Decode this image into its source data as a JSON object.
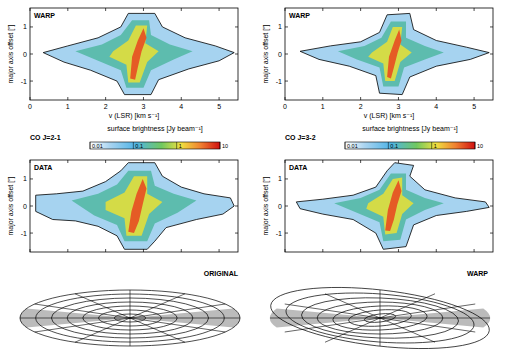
{
  "chart_data": [
    {
      "type": "contour",
      "label": "WARP",
      "xlabel": "v (LSR) [km s⁻¹]",
      "ylabel": "major axis offset [″]",
      "xlim": [
        0,
        5.5
      ],
      "ylim": [
        -1.7,
        1.7
      ],
      "xticks": [
        0,
        1,
        2,
        3,
        4,
        5
      ],
      "yticks": [
        -1,
        0,
        1
      ],
      "contours": [
        {
          "level": 0.03,
          "points": [
            [
              0.35,
              0.05
            ],
            [
              1.0,
              0.3
            ],
            [
              1.8,
              0.6
            ],
            [
              2.4,
              1.0
            ],
            [
              2.6,
              1.5
            ],
            [
              3.3,
              1.5
            ],
            [
              3.5,
              1.0
            ],
            [
              4.1,
              0.6
            ],
            [
              4.9,
              0.3
            ],
            [
              5.4,
              0.05
            ],
            [
              5.0,
              -0.25
            ],
            [
              4.2,
              -0.55
            ],
            [
              3.4,
              -0.95
            ],
            [
              3.2,
              -1.5
            ],
            [
              2.5,
              -1.5
            ],
            [
              2.3,
              -1.0
            ],
            [
              1.6,
              -0.6
            ],
            [
              0.9,
              -0.3
            ]
          ]
        },
        {
          "level": 0.2,
          "points": [
            [
              1.2,
              0.1
            ],
            [
              1.9,
              0.35
            ],
            [
              2.4,
              0.7
            ],
            [
              2.7,
              1.25
            ],
            [
              3.15,
              1.25
            ],
            [
              3.2,
              0.7
            ],
            [
              3.7,
              0.35
            ],
            [
              4.3,
              0.1
            ],
            [
              3.8,
              -0.2
            ],
            [
              3.2,
              -0.6
            ],
            [
              3.0,
              -1.25
            ],
            [
              2.55,
              -1.25
            ],
            [
              2.4,
              -0.6
            ],
            [
              1.8,
              -0.25
            ]
          ]
        },
        {
          "level": 1,
          "points": [
            [
              2.2,
              0.1
            ],
            [
              2.6,
              0.5
            ],
            [
              2.8,
              1.05
            ],
            [
              3.1,
              1.05
            ],
            [
              3.05,
              0.4
            ],
            [
              3.4,
              0.1
            ],
            [
              3.1,
              -0.3
            ],
            [
              2.9,
              -1.05
            ],
            [
              2.6,
              -1.05
            ],
            [
              2.55,
              -0.4
            ],
            [
              2.1,
              -0.1
            ]
          ]
        },
        {
          "level": 5,
          "points": [
            [
              2.65,
              -0.9
            ],
            [
              2.7,
              -0.1
            ],
            [
              2.85,
              0.5
            ],
            [
              3.0,
              0.95
            ],
            [
              3.08,
              0.6
            ],
            [
              2.95,
              0.1
            ],
            [
              2.85,
              -0.5
            ],
            [
              2.78,
              -0.95
            ]
          ]
        }
      ]
    },
    {
      "type": "contour",
      "label": "WARP",
      "xlabel": "v (LSR) [km s⁻¹]",
      "ylabel": "major axis offset [″]",
      "xlim": [
        0,
        5.5
      ],
      "ylim": [
        -1.7,
        1.7
      ],
      "xticks": [
        0,
        1,
        2,
        3,
        4,
        5
      ],
      "yticks": [
        -1,
        0,
        1
      ],
      "contours": [
        {
          "level": 0.03,
          "points": [
            [
              0.4,
              0.1
            ],
            [
              1.2,
              0.3
            ],
            [
              2.0,
              0.45
            ],
            [
              2.5,
              0.8
            ],
            [
              2.7,
              1.45
            ],
            [
              3.3,
              1.5
            ],
            [
              3.4,
              0.9
            ],
            [
              4.0,
              0.5
            ],
            [
              4.8,
              0.25
            ],
            [
              5.4,
              0.05
            ],
            [
              4.9,
              -0.2
            ],
            [
              4.0,
              -0.45
            ],
            [
              3.3,
              -0.85
            ],
            [
              3.1,
              -1.5
            ],
            [
              2.5,
              -1.45
            ],
            [
              2.4,
              -0.8
            ],
            [
              1.7,
              -0.45
            ],
            [
              0.9,
              -0.2
            ]
          ]
        },
        {
          "level": 0.2,
          "points": [
            [
              1.4,
              0.1
            ],
            [
              2.1,
              0.3
            ],
            [
              2.55,
              0.6
            ],
            [
              2.8,
              1.2
            ],
            [
              3.2,
              1.2
            ],
            [
              3.2,
              0.6
            ],
            [
              3.7,
              0.3
            ],
            [
              4.2,
              0.05
            ],
            [
              3.7,
              -0.2
            ],
            [
              3.15,
              -0.5
            ],
            [
              3.0,
              -1.2
            ],
            [
              2.6,
              -1.2
            ],
            [
              2.5,
              -0.5
            ],
            [
              1.9,
              -0.2
            ]
          ]
        },
        {
          "level": 1,
          "points": [
            [
              2.3,
              0.05
            ],
            [
              2.7,
              0.45
            ],
            [
              2.85,
              1.0
            ],
            [
              3.1,
              1.0
            ],
            [
              3.05,
              0.35
            ],
            [
              3.35,
              0.05
            ],
            [
              3.05,
              -0.3
            ],
            [
              2.9,
              -1.0
            ],
            [
              2.65,
              -1.0
            ],
            [
              2.6,
              -0.35
            ],
            [
              2.2,
              -0.1
            ]
          ]
        },
        {
          "level": 5,
          "points": [
            [
              2.7,
              -0.85
            ],
            [
              2.75,
              -0.1
            ],
            [
              2.9,
              0.5
            ],
            [
              3.02,
              0.9
            ],
            [
              3.08,
              0.5
            ],
            [
              2.98,
              0.05
            ],
            [
              2.88,
              -0.5
            ],
            [
              2.8,
              -0.9
            ]
          ]
        }
      ]
    },
    {
      "type": "contour",
      "label": "DATA",
      "xlabel": "v (LSR) [km s⁻¹]",
      "ylabel": "major axis offset [″]",
      "xlim": [
        0,
        5.5
      ],
      "ylim": [
        -1.7,
        1.7
      ],
      "xticks": [
        0,
        1,
        2,
        3,
        4,
        5
      ],
      "yticks": [
        -1,
        0,
        1
      ],
      "tick_labels": "y",
      "colorbar": {
        "title": "CO J=2-1",
        "label": "surface brightness [Jy beam⁻¹]",
        "range": [
          0.01,
          10
        ],
        "ticks": [
          0.01,
          0.1,
          1,
          10
        ],
        "log": true
      },
      "contours": [
        {
          "level": 0.03,
          "points": [
            [
              0.15,
              0.4
            ],
            [
              0.7,
              0.45
            ],
            [
              1.4,
              0.55
            ],
            [
              2.0,
              0.9
            ],
            [
              2.4,
              1.3
            ],
            [
              2.6,
              1.6
            ],
            [
              3.3,
              1.6
            ],
            [
              3.5,
              1.1
            ],
            [
              4.0,
              0.7
            ],
            [
              4.6,
              0.45
            ],
            [
              5.3,
              0.3
            ],
            [
              5.4,
              0.0
            ],
            [
              5.1,
              -0.3
            ],
            [
              4.4,
              -0.5
            ],
            [
              3.6,
              -0.8
            ],
            [
              3.3,
              -1.3
            ],
            [
              3.1,
              -1.6
            ],
            [
              2.5,
              -1.6
            ],
            [
              2.3,
              -1.1
            ],
            [
              1.8,
              -0.75
            ],
            [
              1.2,
              -0.55
            ],
            [
              0.6,
              -0.5
            ],
            [
              0.15,
              -0.2
            ]
          ]
        },
        {
          "level": 0.2,
          "points": [
            [
              1.1,
              0.2
            ],
            [
              1.8,
              0.45
            ],
            [
              2.3,
              0.8
            ],
            [
              2.6,
              1.3
            ],
            [
              3.2,
              1.3
            ],
            [
              3.3,
              0.75
            ],
            [
              3.8,
              0.45
            ],
            [
              4.4,
              0.2
            ],
            [
              3.9,
              -0.25
            ],
            [
              3.3,
              -0.65
            ],
            [
              3.1,
              -1.3
            ],
            [
              2.5,
              -1.3
            ],
            [
              2.3,
              -0.7
            ],
            [
              1.7,
              -0.35
            ]
          ]
        },
        {
          "level": 1,
          "points": [
            [
              2.0,
              0.15
            ],
            [
              2.5,
              0.5
            ],
            [
              2.75,
              1.1
            ],
            [
              3.1,
              1.1
            ],
            [
              3.1,
              0.45
            ],
            [
              3.5,
              0.15
            ],
            [
              3.15,
              -0.3
            ],
            [
              2.95,
              -1.1
            ],
            [
              2.55,
              -1.1
            ],
            [
              2.5,
              -0.45
            ],
            [
              2.0,
              -0.15
            ]
          ]
        },
        {
          "level": 5,
          "points": [
            [
              2.6,
              -0.95
            ],
            [
              2.68,
              -0.2
            ],
            [
              2.82,
              0.45
            ],
            [
              2.98,
              1.0
            ],
            [
              3.08,
              0.65
            ],
            [
              2.98,
              0.05
            ],
            [
              2.88,
              -0.55
            ],
            [
              2.75,
              -1.0
            ]
          ]
        }
      ]
    },
    {
      "type": "contour",
      "label": "DATA",
      "xlabel": "v (LSR) [km s⁻¹]",
      "ylabel": "major axis offset [″]",
      "xlim": [
        0,
        5.5
      ],
      "ylim": [
        -1.7,
        1.7
      ],
      "xticks": [
        0,
        1,
        2,
        3,
        4,
        5
      ],
      "yticks": [
        -1,
        0,
        1
      ],
      "tick_labels": "y",
      "colorbar": {
        "title": "CO J=3-2",
        "label": "surface brightness [Jy beam⁻¹]",
        "range": [
          0.01,
          10
        ],
        "ticks": [
          0.01,
          0.1,
          1,
          10
        ],
        "log": true
      },
      "contours": [
        {
          "level": 0.03,
          "points": [
            [
              0.3,
              0.15
            ],
            [
              1.0,
              0.25
            ],
            [
              1.8,
              0.4
            ],
            [
              2.4,
              0.7
            ],
            [
              2.7,
              1.3
            ],
            [
              2.9,
              1.6
            ],
            [
              3.4,
              1.5
            ],
            [
              3.3,
              1.1
            ],
            [
              3.7,
              0.6
            ],
            [
              4.5,
              0.3
            ],
            [
              5.3,
              0.15
            ],
            [
              5.4,
              -0.05
            ],
            [
              4.8,
              -0.2
            ],
            [
              4.0,
              -0.35
            ],
            [
              3.4,
              -0.7
            ],
            [
              3.2,
              -1.5
            ],
            [
              2.6,
              -1.6
            ],
            [
              2.4,
              -1.0
            ],
            [
              1.8,
              -0.5
            ],
            [
              1.0,
              -0.3
            ],
            [
              0.4,
              -0.1
            ]
          ]
        },
        {
          "level": 0.2,
          "points": [
            [
              1.3,
              0.1
            ],
            [
              2.0,
              0.3
            ],
            [
              2.5,
              0.6
            ],
            [
              2.8,
              1.2
            ],
            [
              3.2,
              1.2
            ],
            [
              3.2,
              0.6
            ],
            [
              3.7,
              0.3
            ],
            [
              4.2,
              0.1
            ],
            [
              3.7,
              -0.15
            ],
            [
              3.2,
              -0.5
            ],
            [
              3.05,
              -1.25
            ],
            [
              2.6,
              -1.3
            ],
            [
              2.5,
              -0.6
            ],
            [
              1.9,
              -0.25
            ]
          ]
        },
        {
          "level": 1,
          "points": [
            [
              2.2,
              0.1
            ],
            [
              2.6,
              0.45
            ],
            [
              2.85,
              1.0
            ],
            [
              3.1,
              1.05
            ],
            [
              3.1,
              0.4
            ],
            [
              3.4,
              0.1
            ],
            [
              3.1,
              -0.3
            ],
            [
              2.95,
              -1.0
            ],
            [
              2.65,
              -1.05
            ],
            [
              2.6,
              -0.4
            ],
            [
              2.15,
              -0.1
            ]
          ]
        },
        {
          "level": 5,
          "points": [
            [
              2.65,
              -0.9
            ],
            [
              2.72,
              -0.15
            ],
            [
              2.85,
              0.5
            ],
            [
              3.0,
              0.95
            ],
            [
              3.08,
              0.55
            ],
            [
              2.97,
              0.05
            ],
            [
              2.88,
              -0.5
            ],
            [
              2.78,
              -0.92
            ]
          ]
        }
      ]
    }
  ],
  "diagrams": [
    {
      "label": "ORIGINAL"
    },
    {
      "label": "WARP"
    }
  ]
}
